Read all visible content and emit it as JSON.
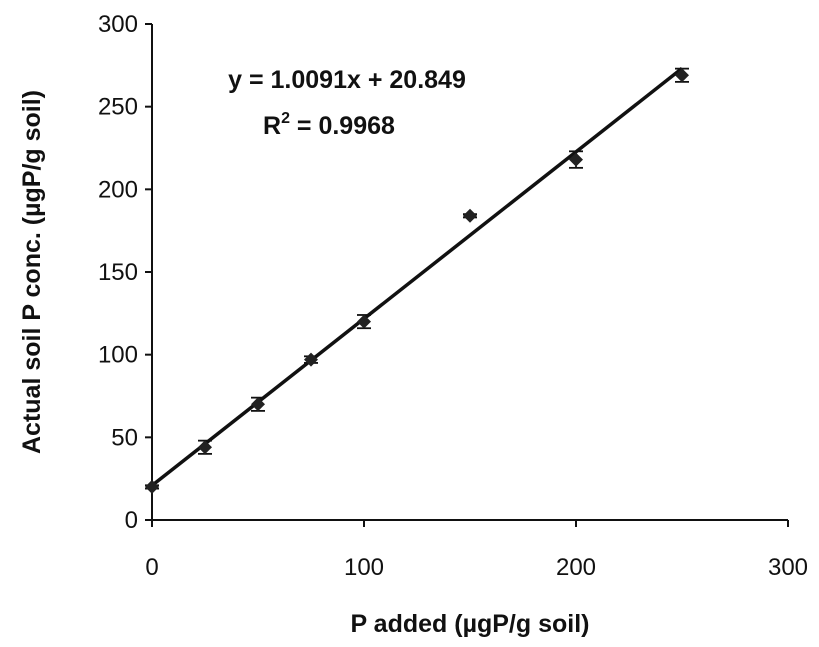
{
  "chart_data": {
    "type": "scatter",
    "xlabel": "P added (µgP/g soil)",
    "ylabel": "Actual soil P conc. (µgP/g soil)",
    "xlim": [
      0,
      300
    ],
    "ylim": [
      0,
      300
    ],
    "xticks": [
      "0",
      "100",
      "200",
      "300"
    ],
    "yticks": [
      "0",
      "50",
      "100",
      "150",
      "200",
      "250",
      "300"
    ],
    "grid": false,
    "series": [
      {
        "marker": "diamond",
        "color": "#222222",
        "x": [
          0,
          25,
          50,
          75,
          100,
          150,
          200,
          250
        ],
        "y": [
          20,
          44,
          70,
          97,
          120,
          184,
          218,
          269
        ],
        "error": [
          1,
          4,
          4,
          2,
          4,
          1,
          5,
          4
        ]
      }
    ],
    "trendline": {
      "type": "linear",
      "slope": 1.0091,
      "intercept": 20.849,
      "x_range": [
        0,
        250
      ],
      "equation": "y = 1.0091x + 20.849",
      "r2_label": "R",
      "r2_exponent": "2",
      "r2_value": " = 0.9968"
    }
  }
}
